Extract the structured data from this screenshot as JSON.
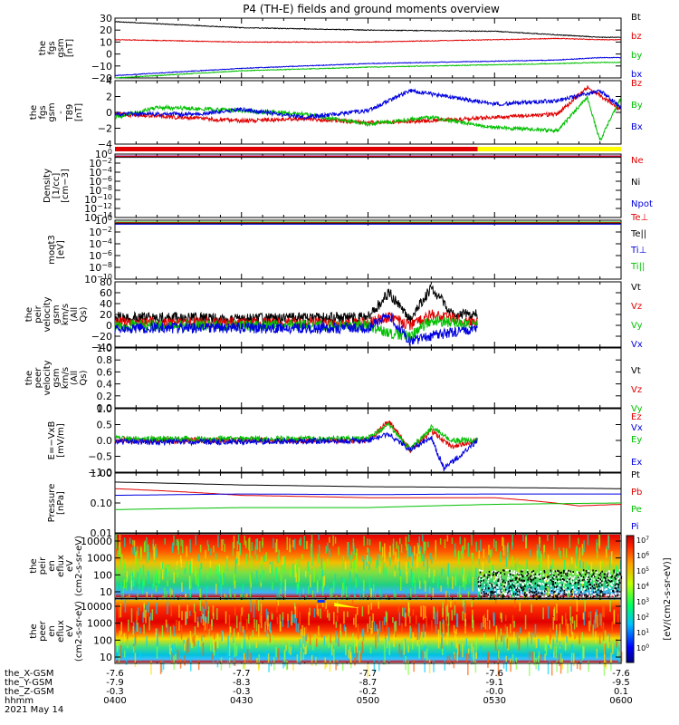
{
  "title": "P4 (TH-E) fields and ground moments overview",
  "footer": {
    "rows": [
      {
        "label": "the_X-GSM",
        "values": [
          "-7.6",
          "-7.7",
          "-7.7",
          "-7.6",
          "-7.6"
        ]
      },
      {
        "label": "the_Y-GSM",
        "values": [
          "-7.9",
          "-8.3",
          "-8.7",
          "-9.1",
          "-9.5"
        ]
      },
      {
        "label": "the_Z-GSM",
        "values": [
          "-0.3",
          "-0.3",
          "-0.2",
          "-0.0",
          "0.1"
        ]
      },
      {
        "label": "hhmm",
        "values": [
          "0400",
          "0430",
          "0500",
          "0530",
          "0600"
        ]
      }
    ],
    "date": "2021 May 14"
  },
  "colors": {
    "black": "#000000",
    "red": "#e00000",
    "green": "#00c000",
    "blue": "#0000e0",
    "yellow": "#ffff00",
    "purple": "#800080"
  },
  "mode_bar": {
    "red_until": "0526"
  },
  "colorbar": {
    "unit": "[eV/(cm^2-s-sr-eV)]",
    "ticks": [
      "10^7",
      "10^6",
      "10^5",
      "10^4",
      "10^3",
      "10^2",
      "10^1",
      "10^0"
    ]
  },
  "chart_data": [
    {
      "type": "line",
      "title": "",
      "ylabel": "the fgs gsm [nT]",
      "ylim": [
        -20,
        30
      ],
      "yticks": [
        "30",
        "20",
        "10",
        "0",
        "−10",
        "−20"
      ],
      "series": [
        {
          "name": "Bt",
          "color": "#000000",
          "x": [
            "0400",
            "0430",
            "0500",
            "0530",
            "0545",
            "0555",
            "0600"
          ],
          "values": [
            27,
            22,
            20,
            19,
            16,
            14,
            14
          ]
        },
        {
          "name": "bz",
          "color": "#e00000",
          "x": [
            "0400",
            "0430",
            "0500",
            "0530",
            "0545",
            "0555",
            "0600"
          ],
          "values": [
            12,
            10,
            10,
            12,
            13,
            12,
            12
          ]
        },
        {
          "name": "by",
          "color": "#00c000",
          "x": [
            "0400",
            "0430",
            "0500",
            "0530",
            "0545",
            "0555",
            "0600"
          ],
          "values": [
            -20,
            -14,
            -11,
            -9,
            -8,
            -7,
            -7
          ]
        },
        {
          "name": "bx",
          "color": "#0000e0",
          "x": [
            "0400",
            "0430",
            "0500",
            "0530",
            "0545",
            "0555",
            "0600"
          ],
          "values": [
            -18,
            -12,
            -8,
            -6,
            -5,
            -3,
            -3
          ]
        }
      ]
    },
    {
      "type": "line",
      "title": "",
      "ylabel": "the fgs gsm - T89 [nT]",
      "ylim": [
        -5,
        4.5
      ],
      "yticks": [
        "4",
        "2",
        "0",
        "−2",
        "−4"
      ],
      "series": [
        {
          "name": "Bz",
          "color": "#e00000",
          "x": [
            "0400",
            "0415",
            "0430",
            "0445",
            "0500",
            "0515",
            "0530",
            "0545",
            "0552",
            "0558",
            "0600"
          ],
          "values": [
            -0.5,
            -1,
            -1.5,
            -1.2,
            -1.8,
            -1.5,
            -1,
            -0.5,
            3.5,
            1,
            0
          ]
        },
        {
          "name": "By",
          "color": "#00c000",
          "x": [
            "0400",
            "0410",
            "0430",
            "0445",
            "0500",
            "0515",
            "0530",
            "0545",
            "0552",
            "0555",
            "0600"
          ],
          "values": [
            -1,
            0.5,
            0,
            -0.5,
            -2,
            -1,
            -2.5,
            -3,
            2,
            -4.5,
            2
          ]
        },
        {
          "name": "Bx",
          "color": "#0000e0",
          "x": [
            "0400",
            "0420",
            "0430",
            "0445",
            "0500",
            "0510",
            "0520",
            "0530",
            "0545",
            "0555",
            "0600"
          ],
          "values": [
            -0.5,
            -0.5,
            0.2,
            -1,
            0,
            3,
            2,
            1,
            1.5,
            3,
            0.5
          ]
        }
      ]
    },
    {
      "type": "line",
      "title": "",
      "ylabel": "Density [1/cc] [cm−3]",
      "yscale": "log",
      "yticks": [
        "10^0",
        "10^−2",
        "10^−4",
        "10^−6",
        "10^−8",
        "10^−10",
        "10^−12",
        "10^−14"
      ],
      "series": [
        {
          "name": "Ne",
          "color": "#e00000"
        },
        {
          "name": "Ni",
          "color": "#000000"
        },
        {
          "name": "Npot",
          "color": "#0000e0"
        }
      ]
    },
    {
      "type": "line",
      "title": "",
      "ylabel": "moqt3 [eV]",
      "yscale": "log",
      "yticks": [
        "10^0",
        "10^−2",
        "10^−4",
        "10^−6",
        "10^−8",
        "10^−10"
      ],
      "series": [
        {
          "name": "Te⊥",
          "color": "#e00000"
        },
        {
          "name": "Te||",
          "color": "#000000"
        },
        {
          "name": "Ti⊥",
          "color": "#0000e0"
        },
        {
          "name": "Ti||",
          "color": "#00c000"
        }
      ]
    },
    {
      "type": "line",
      "title": "",
      "ylabel": "the peir velocity gsm km/s (All Qs)",
      "ylim": [
        -40,
        80
      ],
      "yticks": [
        "80",
        "60",
        "40",
        "20",
        "0",
        "−20",
        "−40"
      ],
      "series": [
        {
          "name": "Vt",
          "color": "#000000",
          "x": [
            "0400",
            "0430",
            "0500",
            "0505",
            "0510",
            "0515",
            "0520",
            "0526"
          ],
          "values": [
            15,
            12,
            15,
            60,
            10,
            70,
            20,
            20
          ]
        },
        {
          "name": "Vz",
          "color": "#e00000",
          "x": [
            "0400",
            "0430",
            "0500",
            "0505",
            "0510",
            "0515",
            "0526"
          ],
          "values": [
            5,
            5,
            5,
            15,
            0,
            20,
            5
          ]
        },
        {
          "name": "Vy",
          "color": "#00c000",
          "x": [
            "0400",
            "0430",
            "0500",
            "0505",
            "0510",
            "0515",
            "0526"
          ],
          "values": [
            0,
            0,
            0,
            -15,
            -20,
            10,
            0
          ]
        },
        {
          "name": "Vx",
          "color": "#0000e0",
          "x": [
            "0400",
            "0430",
            "0500",
            "0505",
            "0510",
            "0515",
            "0526"
          ],
          "values": [
            -5,
            -5,
            -5,
            20,
            -30,
            -20,
            -5
          ]
        }
      ]
    },
    {
      "type": "line",
      "title": "",
      "ylabel": "the peer velocity gsm km/s (All Qs)",
      "ylim": [
        0,
        1
      ],
      "yticks": [
        "1.0",
        "0.8",
        "0.6",
        "0.4",
        "0.2",
        "0.0"
      ],
      "series": [
        {
          "name": "Vt",
          "color": "#000000"
        },
        {
          "name": "Vz",
          "color": "#e00000"
        },
        {
          "name": "Vy",
          "color": "#00c000"
        },
        {
          "name": "Vx",
          "color": "#0000e0"
        }
      ]
    },
    {
      "type": "line",
      "title": "",
      "ylabel": "E=−VxB [mV/m]",
      "ylim": [
        -1,
        1
      ],
      "yticks": [
        "1.0",
        "0.5",
        "0.0",
        "−0.5",
        "−1.0"
      ],
      "series": [
        {
          "name": "Ez",
          "color": "#e00000",
          "x": [
            "0400",
            "0430",
            "0500",
            "0505",
            "0510",
            "0515",
            "0520",
            "0526"
          ],
          "values": [
            0,
            0,
            0,
            0.6,
            -0.3,
            0.3,
            -0.2,
            0
          ]
        },
        {
          "name": "Ey",
          "color": "#00c000",
          "x": [
            "0400",
            "0430",
            "0500",
            "0505",
            "0510",
            "0515",
            "0520",
            "0526"
          ],
          "values": [
            0.05,
            0.05,
            0.05,
            0.5,
            -0.3,
            0.4,
            0,
            0
          ]
        },
        {
          "name": "Ex",
          "color": "#0000e0",
          "x": [
            "0400",
            "0430",
            "0500",
            "0505",
            "0510",
            "0515",
            "0518",
            "0526"
          ],
          "values": [
            -0.05,
            -0.05,
            0,
            0.2,
            -0.3,
            0.1,
            -0.9,
            0
          ]
        }
      ]
    },
    {
      "type": "line",
      "title": "",
      "ylabel": "Pressure [nPa]",
      "yscale": "log",
      "yticks": [
        "1.00",
        "0.10",
        "0.01"
      ],
      "series": [
        {
          "name": "Pt",
          "color": "#000000",
          "x": [
            "0400",
            "0430",
            "0500",
            "0530",
            "0600"
          ],
          "values": [
            0.5,
            0.4,
            0.35,
            0.33,
            0.3
          ]
        },
        {
          "name": "Pb",
          "color": "#e00000",
          "x": [
            "0400",
            "0430",
            "0500",
            "0530",
            "0550",
            "0600"
          ],
          "values": [
            0.3,
            0.18,
            0.15,
            0.15,
            0.08,
            0.09
          ]
        },
        {
          "name": "Pe",
          "color": "#00c000",
          "x": [
            "0400",
            "0430",
            "0500",
            "0530",
            "0600"
          ],
          "values": [
            0.06,
            0.07,
            0.07,
            0.09,
            0.1
          ]
        },
        {
          "name": "Pi",
          "color": "#0000e0",
          "x": [
            "0400",
            "0430",
            "0500",
            "0530",
            "0600"
          ],
          "values": [
            0.18,
            0.2,
            0.19,
            0.2,
            0.2
          ]
        }
      ]
    },
    {
      "type": "heatmap",
      "title": "",
      "ylabel": "the peir en eflux eV (cm^2-s-sr-eV)",
      "yscale": "log",
      "yticks": [
        "10000",
        "1000",
        "100",
        "10"
      ]
    },
    {
      "type": "heatmap",
      "title": "",
      "ylabel": "the peer en eflux eV (cm^2-s-sr-eV)",
      "yscale": "log",
      "yticks": [
        "10000",
        "1000",
        "100",
        "10"
      ]
    }
  ]
}
